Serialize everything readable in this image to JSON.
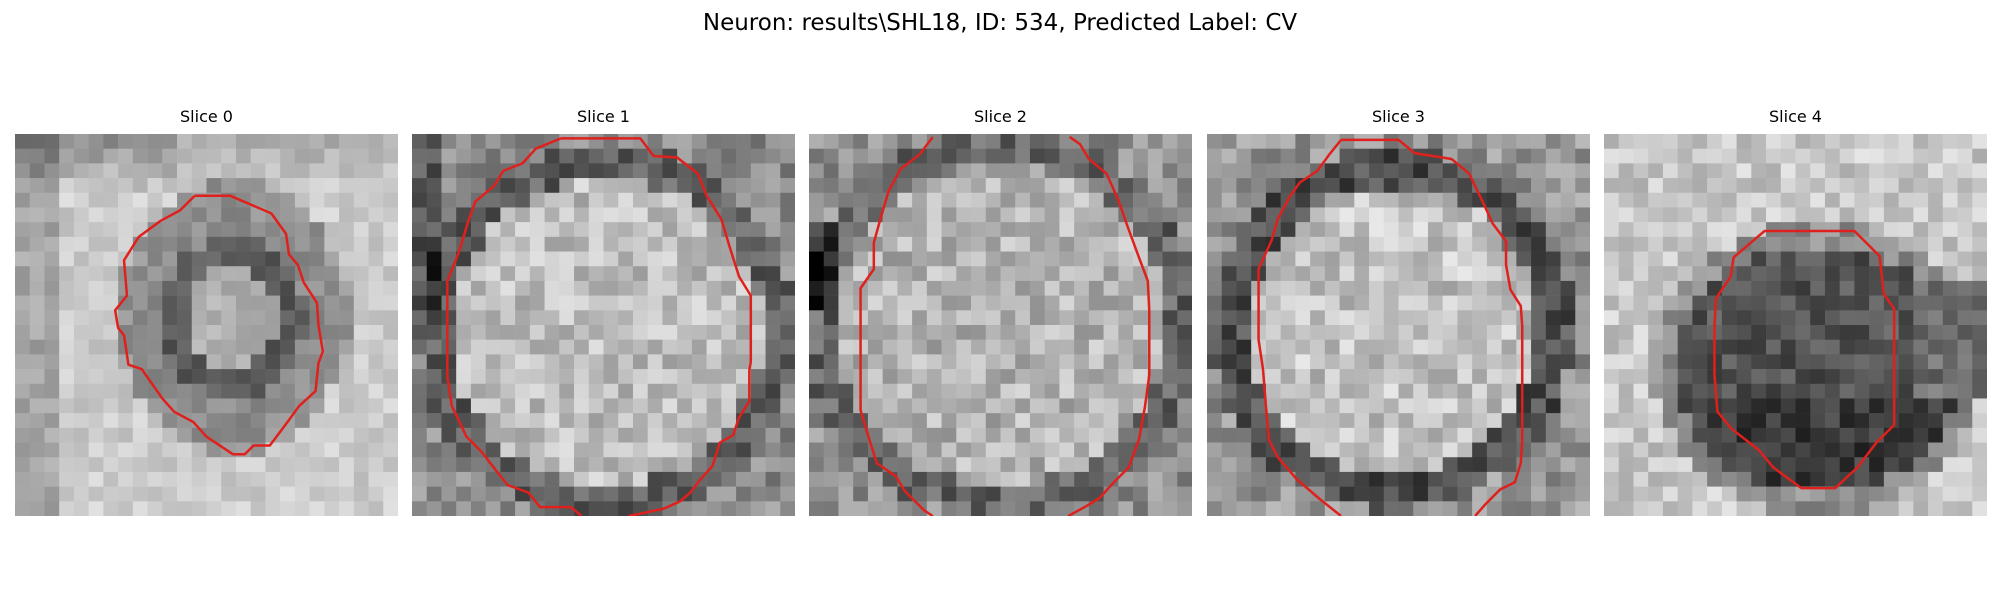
{
  "figure": {
    "title": "Neuron: results\\SHL18, ID: 534, Predicted Label: CV"
  },
  "panels": [
    {
      "title": "Slice 0",
      "kind": "ring-small"
    },
    {
      "title": "Slice 1",
      "kind": "bright-round"
    },
    {
      "title": "Slice 2",
      "kind": "bright-round-2"
    },
    {
      "title": "Slice 3",
      "kind": "bright-dark-rim"
    },
    {
      "title": "Slice 4",
      "kind": "dark-blob"
    }
  ],
  "colors": {
    "contour": "#e0201c",
    "background": "#ffffff"
  }
}
